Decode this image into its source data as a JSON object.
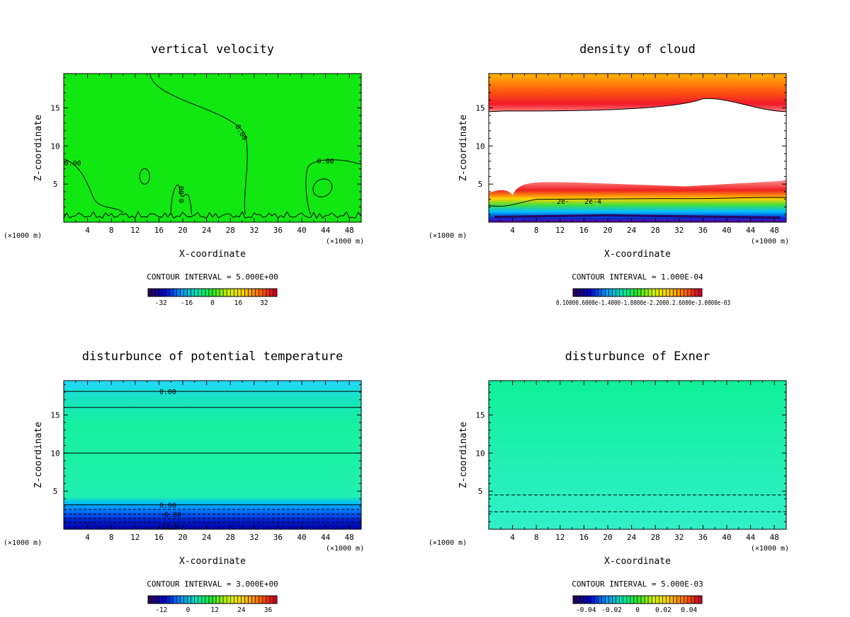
{
  "chart_data": [
    {
      "type": "heatmap",
      "id": "vv",
      "title": "vertical velocity",
      "xlabel": "X-coordinate",
      "ylabel": "Z-coordinate",
      "x_unit": "(×1000 m)",
      "xlim": [
        0,
        50
      ],
      "ylim": [
        0,
        19.5
      ],
      "xticks": [
        4,
        8,
        12,
        16,
        20,
        24,
        28,
        32,
        36,
        40,
        44,
        48
      ],
      "yticks": [
        5,
        10,
        15
      ],
      "contour_interval": "CONTOUR INTERVAL = 5.000E+00",
      "contour_labels": [
        {
          "text": "0.00",
          "x": 1.5,
          "y": 7.8
        },
        {
          "text": "0.00",
          "x": 29.5,
          "y": 12.0
        },
        {
          "text": "0.00",
          "x": 44.0,
          "y": 8.1
        },
        {
          "text": "0.00",
          "x": 20.2,
          "y": 4.0
        }
      ],
      "colorbar": {
        "ticks": [
          "-32",
          "-16",
          "0",
          "16",
          "32"
        ],
        "tick_values": [
          -32,
          -16,
          0,
          16,
          32
        ],
        "range": [
          -40,
          40
        ]
      },
      "colors": {
        "fill": "#11e811"
      }
    },
    {
      "type": "heatmap",
      "id": "cloud",
      "title": "density of cloud",
      "xlabel": "X-coordinate",
      "ylabel": "Z-coordinate",
      "x_unit": "(×1000 m)",
      "xlim": [
        0,
        50
      ],
      "ylim": [
        0,
        19.5
      ],
      "xticks": [
        4,
        8,
        12,
        16,
        20,
        24,
        28,
        32,
        36,
        40,
        44,
        48
      ],
      "yticks": [
        5,
        10,
        15
      ],
      "contour_interval": "CONTOUR INTERVAL = 1.000E-04",
      "contour_labels": [
        {
          "text": "2e-4",
          "x": 17.5,
          "y": 2.8
        },
        {
          "text": "2e-",
          "x": 12.5,
          "y": 2.8
        }
      ],
      "colorbar": {
        "tick_text": "0.10000.6000e-1.4000-1.8000e-2.2000.2.6000e-3.0000e-03"
      },
      "colors": {
        "fill": "#ffffff"
      }
    },
    {
      "type": "heatmap",
      "id": "pt",
      "title": "disturbunce of potential temperature",
      "xlabel": "X-coordinate",
      "ylabel": "Z-coordinate",
      "x_unit": "(×1000 m)",
      "xlim": [
        0,
        50
      ],
      "ylim": [
        0,
        19.5
      ],
      "xticks": [
        4,
        8,
        12,
        16,
        20,
        24,
        28,
        32,
        36,
        40,
        44,
        48
      ],
      "yticks": [
        5,
        10,
        15
      ],
      "contour_interval": "CONTOUR INTERVAL = 3.000E+00",
      "contour_labels": [
        {
          "text": "0.00",
          "x": 17.5,
          "y": 18.1
        },
        {
          "text": "0.00",
          "x": 17.5,
          "y": 3.2
        },
        {
          "text": "-6.00",
          "x": 18.0,
          "y": 2.0
        },
        {
          "text": "-12.0",
          "x": 17.5,
          "y": 0.4
        }
      ],
      "colorbar": {
        "ticks": [
          "-12",
          "0",
          "12",
          "24",
          "36"
        ],
        "tick_values": [
          -12,
          0,
          12,
          24,
          36
        ],
        "range": [
          -18,
          40
        ]
      },
      "colors": {
        "fill": "#1cf0a8"
      }
    },
    {
      "type": "heatmap",
      "id": "ex",
      "title": "disturbunce of Exner",
      "xlabel": "X-coordinate",
      "ylabel": "Z-coordinate",
      "x_unit": "(×1000 m)",
      "xlim": [
        0,
        50
      ],
      "ylim": [
        0,
        19.5
      ],
      "xticks": [
        4,
        8,
        12,
        16,
        20,
        24,
        28,
        32,
        36,
        40,
        44,
        48
      ],
      "yticks": [
        5,
        10,
        15
      ],
      "contour_interval": "CONTOUR INTERVAL = 5.000E-03",
      "contour_labels": [],
      "colorbar": {
        "ticks": [
          "-0.04",
          "-0.02",
          "0",
          "0.02",
          "0.04"
        ],
        "tick_values": [
          -0.04,
          -0.02,
          0,
          0.02,
          0.04
        ],
        "range": [
          -0.05,
          0.05
        ]
      },
      "colors": {
        "fill": "#14f0a0"
      }
    }
  ]
}
